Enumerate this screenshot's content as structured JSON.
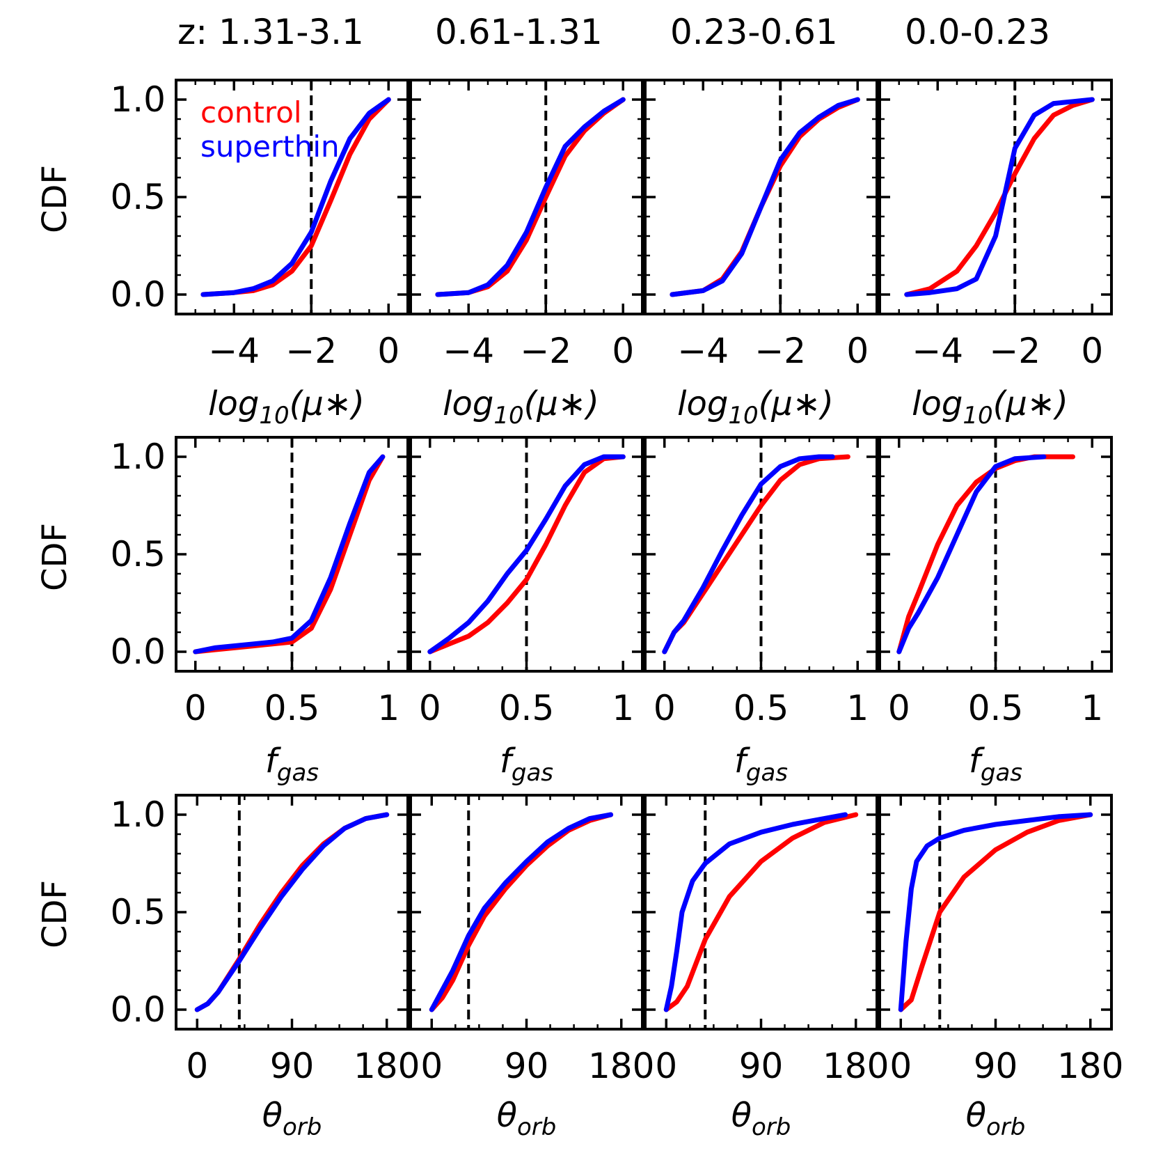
{
  "figure": {
    "column_titles": [
      "z: 1.31-3.1",
      "0.61-1.31",
      "0.23-0.61",
      "0.0-0.23"
    ],
    "legend": [
      {
        "label": "control",
        "color": "#ff0000"
      },
      {
        "label": "superthin",
        "color": "#0000ff"
      }
    ],
    "colors": {
      "control": "#ff0000",
      "superthin": "#0000ff",
      "threshold": "#000000"
    }
  },
  "rows": [
    {
      "ylabel": "CDF",
      "xlabel_base": "log",
      "xlabel_sub": "10",
      "xlabel_tail": "(μ∗)"
    },
    {
      "ylabel": "CDF",
      "xlabel_base": "f",
      "xlabel_sub": "gas",
      "xlabel_tail": ""
    },
    {
      "ylabel": "CDF",
      "xlabel_base": "θ",
      "xlabel_sub": "orb",
      "xlabel_tail": ""
    }
  ],
  "chart_data": [
    {
      "type": "line",
      "row": 0,
      "col": 0,
      "title": "z: 1.31-3.1",
      "xlabel": "log10(μ*)",
      "ylabel": "CDF",
      "xlim": [
        -5.5,
        0.5
      ],
      "ylim": [
        -0.1,
        1.1
      ],
      "xticks": [
        -4,
        -2,
        0
      ],
      "xtick_labels": [
        "−4",
        "−2",
        "0"
      ],
      "yticks": [
        0,
        0.5,
        1
      ],
      "ytick_labels": [
        "0.0",
        "0.5",
        "1.0"
      ],
      "threshold": -2,
      "series": [
        {
          "name": "control",
          "x": [
            -4.8,
            -4,
            -3.5,
            -3,
            -2.5,
            -2,
            -1.5,
            -1,
            -0.5,
            0
          ],
          "y": [
            0,
            0.01,
            0.02,
            0.05,
            0.12,
            0.25,
            0.48,
            0.72,
            0.9,
            1.0
          ]
        },
        {
          "name": "superthin",
          "x": [
            -4.8,
            -4,
            -3.5,
            -3,
            -2.5,
            -2,
            -1.5,
            -1,
            -0.5,
            0
          ],
          "y": [
            0,
            0.01,
            0.03,
            0.07,
            0.16,
            0.32,
            0.58,
            0.8,
            0.93,
            1.0
          ]
        }
      ]
    },
    {
      "type": "line",
      "row": 0,
      "col": 1,
      "title": "0.61-1.31",
      "xlabel": "log10(μ*)",
      "ylabel": "CDF",
      "xlim": [
        -5.5,
        0.5
      ],
      "ylim": [
        -0.1,
        1.1
      ],
      "xticks": [
        -4,
        -2,
        0
      ],
      "xtick_labels": [
        "−4",
        "−2",
        "0"
      ],
      "yticks": [
        0,
        0.5,
        1
      ],
      "ytick_labels": [
        "0.0",
        "0.5",
        "1.0"
      ],
      "threshold": -2,
      "series": [
        {
          "name": "control",
          "x": [
            -4.8,
            -4,
            -3.5,
            -3,
            -2.5,
            -2,
            -1.5,
            -1,
            -0.5,
            0
          ],
          "y": [
            0,
            0.01,
            0.04,
            0.12,
            0.28,
            0.5,
            0.71,
            0.84,
            0.93,
            1.0
          ]
        },
        {
          "name": "superthin",
          "x": [
            -4.8,
            -4,
            -3.5,
            -3,
            -2.5,
            -2,
            -1.5,
            -1,
            -0.5,
            0
          ],
          "y": [
            0,
            0.01,
            0.05,
            0.15,
            0.32,
            0.55,
            0.76,
            0.86,
            0.94,
            1.0
          ]
        }
      ]
    },
    {
      "type": "line",
      "row": 0,
      "col": 2,
      "title": "0.23-0.61",
      "xlabel": "log10(μ*)",
      "ylabel": "CDF",
      "xlim": [
        -5.5,
        0.5
      ],
      "ylim": [
        -0.1,
        1.1
      ],
      "xticks": [
        -4,
        -2,
        0
      ],
      "xtick_labels": [
        "−4",
        "−2",
        "0"
      ],
      "yticks": [
        0,
        0.5,
        1
      ],
      "ytick_labels": [
        "0.0",
        "0.5",
        "1.0"
      ],
      "threshold": -2,
      "series": [
        {
          "name": "control",
          "x": [
            -4.8,
            -4,
            -3.5,
            -3,
            -2.5,
            -2,
            -1.5,
            -1,
            -0.5,
            0
          ],
          "y": [
            0,
            0.02,
            0.08,
            0.22,
            0.45,
            0.66,
            0.81,
            0.9,
            0.96,
            1.0
          ]
        },
        {
          "name": "superthin",
          "x": [
            -4.8,
            -4,
            -3.5,
            -3,
            -2.5,
            -2,
            -1.5,
            -1,
            -0.5,
            0
          ],
          "y": [
            0,
            0.02,
            0.07,
            0.21,
            0.45,
            0.69,
            0.83,
            0.91,
            0.97,
            1.0
          ]
        }
      ]
    },
    {
      "type": "line",
      "row": 0,
      "col": 3,
      "title": "0.0-0.23",
      "xlabel": "log10(μ*)",
      "ylabel": "CDF",
      "xlim": [
        -5.5,
        0.5
      ],
      "ylim": [
        -0.1,
        1.1
      ],
      "xticks": [
        -4,
        -2,
        0
      ],
      "xtick_labels": [
        "−4",
        "−2",
        "0"
      ],
      "yticks": [
        0,
        0.5,
        1
      ],
      "ytick_labels": [
        "0.0",
        "0.5",
        "1.0"
      ],
      "threshold": -2,
      "series": [
        {
          "name": "control",
          "x": [
            -4.8,
            -4.2,
            -3.5,
            -3,
            -2.5,
            -2,
            -1.5,
            -1,
            -0.5,
            0
          ],
          "y": [
            0,
            0.03,
            0.12,
            0.25,
            0.42,
            0.62,
            0.8,
            0.92,
            0.97,
            1.0
          ]
        },
        {
          "name": "superthin",
          "x": [
            -4.8,
            -4.2,
            -3.5,
            -3,
            -2.5,
            -2,
            -1.5,
            -1,
            -0.5,
            0
          ],
          "y": [
            0,
            0.01,
            0.03,
            0.08,
            0.3,
            0.75,
            0.92,
            0.98,
            0.99,
            1.0
          ]
        }
      ]
    },
    {
      "type": "line",
      "row": 1,
      "col": 0,
      "title": "",
      "xlabel": "fgas",
      "ylabel": "CDF",
      "xlim": [
        -0.1,
        1.1
      ],
      "ylim": [
        -0.1,
        1.1
      ],
      "xticks": [
        0,
        0.5,
        1
      ],
      "xtick_labels": [
        "0",
        "0.5",
        "1"
      ],
      "yticks": [
        0,
        0.5,
        1
      ],
      "ytick_labels": [
        "0.0",
        "0.5",
        "1.0"
      ],
      "threshold": 0.5,
      "series": [
        {
          "name": "control",
          "x": [
            0,
            0.1,
            0.2,
            0.3,
            0.4,
            0.5,
            0.6,
            0.7,
            0.8,
            0.9,
            0.97
          ],
          "y": [
            0,
            0.01,
            0.02,
            0.03,
            0.04,
            0.05,
            0.12,
            0.32,
            0.6,
            0.88,
            1.0
          ]
        },
        {
          "name": "superthin",
          "x": [
            0,
            0.1,
            0.2,
            0.3,
            0.4,
            0.5,
            0.6,
            0.7,
            0.8,
            0.9,
            0.97
          ],
          "y": [
            0,
            0.02,
            0.03,
            0.04,
            0.05,
            0.07,
            0.16,
            0.38,
            0.66,
            0.92,
            1.0
          ]
        }
      ]
    },
    {
      "type": "line",
      "row": 1,
      "col": 1,
      "title": "",
      "xlabel": "fgas",
      "ylabel": "CDF",
      "xlim": [
        -0.1,
        1.1
      ],
      "ylim": [
        -0.1,
        1.1
      ],
      "xticks": [
        0,
        0.5,
        1
      ],
      "xtick_labels": [
        "0",
        "0.5",
        "1"
      ],
      "yticks": [
        0,
        0.5,
        1
      ],
      "ytick_labels": [
        "0.0",
        "0.5",
        "1.0"
      ],
      "threshold": 0.5,
      "series": [
        {
          "name": "control",
          "x": [
            0,
            0.1,
            0.2,
            0.3,
            0.4,
            0.5,
            0.6,
            0.7,
            0.8,
            0.9,
            1.0
          ],
          "y": [
            0,
            0.04,
            0.08,
            0.15,
            0.25,
            0.37,
            0.55,
            0.75,
            0.92,
            0.99,
            1.0
          ]
        },
        {
          "name": "superthin",
          "x": [
            0,
            0.1,
            0.2,
            0.3,
            0.4,
            0.5,
            0.6,
            0.7,
            0.8,
            0.9,
            1.0
          ],
          "y": [
            0,
            0.07,
            0.15,
            0.26,
            0.4,
            0.52,
            0.68,
            0.85,
            0.96,
            1.0,
            1.0
          ]
        }
      ]
    },
    {
      "type": "line",
      "row": 1,
      "col": 2,
      "title": "",
      "xlabel": "fgas",
      "ylabel": "CDF",
      "xlim": [
        -0.1,
        1.1
      ],
      "ylim": [
        -0.1,
        1.1
      ],
      "xticks": [
        0,
        0.5,
        1
      ],
      "xtick_labels": [
        "0",
        "0.5",
        "1"
      ],
      "yticks": [
        0,
        0.5,
        1
      ],
      "ytick_labels": [
        "0.0",
        "0.5",
        "1.0"
      ],
      "threshold": 0.5,
      "series": [
        {
          "name": "control",
          "x": [
            0,
            0.05,
            0.1,
            0.2,
            0.3,
            0.4,
            0.5,
            0.6,
            0.7,
            0.8,
            0.95
          ],
          "y": [
            0,
            0.1,
            0.15,
            0.3,
            0.45,
            0.6,
            0.75,
            0.88,
            0.96,
            0.99,
            1.0
          ]
        },
        {
          "name": "superthin",
          "x": [
            0,
            0.05,
            0.1,
            0.2,
            0.3,
            0.4,
            0.5,
            0.6,
            0.7,
            0.8,
            0.87
          ],
          "y": [
            0,
            0.1,
            0.16,
            0.33,
            0.52,
            0.7,
            0.86,
            0.95,
            0.99,
            1.0,
            1.0
          ]
        }
      ]
    },
    {
      "type": "line",
      "row": 1,
      "col": 3,
      "title": "",
      "xlabel": "fgas",
      "ylabel": "CDF",
      "xlim": [
        -0.1,
        1.1
      ],
      "ylim": [
        -0.1,
        1.1
      ],
      "xticks": [
        0,
        0.5,
        1
      ],
      "xtick_labels": [
        "0",
        "0.5",
        "1"
      ],
      "yticks": [
        0,
        0.5,
        1
      ],
      "ytick_labels": [
        "0.0",
        "0.5",
        "1.0"
      ],
      "threshold": 0.5,
      "series": [
        {
          "name": "control",
          "x": [
            0,
            0.05,
            0.1,
            0.2,
            0.3,
            0.4,
            0.5,
            0.6,
            0.7,
            0.9
          ],
          "y": [
            0,
            0.18,
            0.3,
            0.55,
            0.75,
            0.87,
            0.94,
            0.98,
            1.0,
            1.0
          ]
        },
        {
          "name": "superthin",
          "x": [
            0,
            0.05,
            0.1,
            0.2,
            0.3,
            0.4,
            0.5,
            0.6,
            0.75
          ],
          "y": [
            0,
            0.12,
            0.2,
            0.38,
            0.6,
            0.82,
            0.95,
            0.99,
            1.0
          ]
        }
      ]
    },
    {
      "type": "line",
      "row": 2,
      "col": 0,
      "title": "",
      "xlabel": "θorb",
      "ylabel": "CDF",
      "xlim": [
        -20,
        200
      ],
      "ylim": [
        -0.1,
        1.1
      ],
      "xticks": [
        0,
        90,
        180
      ],
      "xtick_labels": [
        "0",
        "90",
        "180"
      ],
      "yticks": [
        0,
        0.5,
        1
      ],
      "ytick_labels": [
        "0.0",
        "0.5",
        "1.0"
      ],
      "threshold": 40,
      "series": [
        {
          "name": "control",
          "x": [
            0,
            10,
            20,
            40,
            60,
            80,
            100,
            120,
            140,
            160,
            180
          ],
          "y": [
            0,
            0.03,
            0.09,
            0.26,
            0.44,
            0.6,
            0.74,
            0.85,
            0.93,
            0.98,
            1.0
          ]
        },
        {
          "name": "superthin",
          "x": [
            0,
            10,
            20,
            40,
            60,
            80,
            100,
            120,
            140,
            160,
            180
          ],
          "y": [
            0,
            0.03,
            0.09,
            0.25,
            0.42,
            0.58,
            0.72,
            0.84,
            0.93,
            0.98,
            1.0
          ]
        }
      ]
    },
    {
      "type": "line",
      "row": 2,
      "col": 1,
      "title": "",
      "xlabel": "θorb",
      "ylabel": "CDF",
      "xlim": [
        -20,
        200
      ],
      "ylim": [
        -0.1,
        1.1
      ],
      "xticks": [
        0,
        90,
        180
      ],
      "xtick_labels": [
        "0",
        "90",
        "180"
      ],
      "yticks": [
        0,
        0.5,
        1
      ],
      "ytick_labels": [
        "0.0",
        "0.5",
        "1.0"
      ],
      "threshold": 35,
      "series": [
        {
          "name": "control",
          "x": [
            0,
            10,
            20,
            35,
            50,
            70,
            90,
            110,
            130,
            150,
            170
          ],
          "y": [
            0,
            0.06,
            0.15,
            0.33,
            0.48,
            0.62,
            0.74,
            0.84,
            0.92,
            0.97,
            1.0
          ]
        },
        {
          "name": "superthin",
          "x": [
            0,
            10,
            20,
            35,
            50,
            70,
            90,
            110,
            130,
            150,
            170
          ],
          "y": [
            0,
            0.1,
            0.2,
            0.38,
            0.52,
            0.65,
            0.76,
            0.86,
            0.93,
            0.98,
            1.0
          ]
        }
      ]
    },
    {
      "type": "line",
      "row": 2,
      "col": 2,
      "title": "",
      "xlabel": "θorb",
      "ylabel": "CDF",
      "xlim": [
        -20,
        200
      ],
      "ylim": [
        -0.1,
        1.1
      ],
      "xticks": [
        0,
        90,
        180
      ],
      "xtick_labels": [
        "0",
        "90",
        "180"
      ],
      "yticks": [
        0,
        0.5,
        1
      ],
      "ytick_labels": [
        "0.0",
        "0.5",
        "1.0"
      ],
      "threshold": 37,
      "series": [
        {
          "name": "control",
          "x": [
            0,
            10,
            20,
            37,
            60,
            90,
            120,
            150,
            180
          ],
          "y": [
            0,
            0.04,
            0.12,
            0.36,
            0.58,
            0.76,
            0.88,
            0.96,
            1.0
          ]
        },
        {
          "name": "superthin",
          "x": [
            0,
            5,
            10,
            15,
            25,
            37,
            60,
            90,
            120,
            150,
            170
          ],
          "y": [
            0,
            0.12,
            0.3,
            0.5,
            0.66,
            0.75,
            0.85,
            0.91,
            0.95,
            0.98,
            1.0
          ]
        }
      ]
    },
    {
      "type": "line",
      "row": 2,
      "col": 3,
      "title": "",
      "xlabel": "θorb",
      "ylabel": "CDF",
      "xlim": [
        -20,
        200
      ],
      "ylim": [
        -0.1,
        1.1
      ],
      "xticks": [
        0,
        90,
        180
      ],
      "xtick_labels": [
        "0",
        "90",
        "180"
      ],
      "yticks": [
        0,
        0.5,
        1
      ],
      "ytick_labels": [
        "0.0",
        "0.5",
        "1.0"
      ],
      "threshold": 37,
      "series": [
        {
          "name": "control",
          "x": [
            0,
            10,
            20,
            37,
            60,
            90,
            120,
            150,
            180
          ],
          "y": [
            0,
            0.05,
            0.22,
            0.5,
            0.68,
            0.82,
            0.91,
            0.97,
            1.0
          ]
        },
        {
          "name": "superthin",
          "x": [
            0,
            5,
            10,
            15,
            25,
            37,
            60,
            90,
            120,
            150,
            180
          ],
          "y": [
            0,
            0.35,
            0.62,
            0.76,
            0.84,
            0.88,
            0.92,
            0.95,
            0.97,
            0.99,
            1.0
          ]
        }
      ]
    }
  ]
}
